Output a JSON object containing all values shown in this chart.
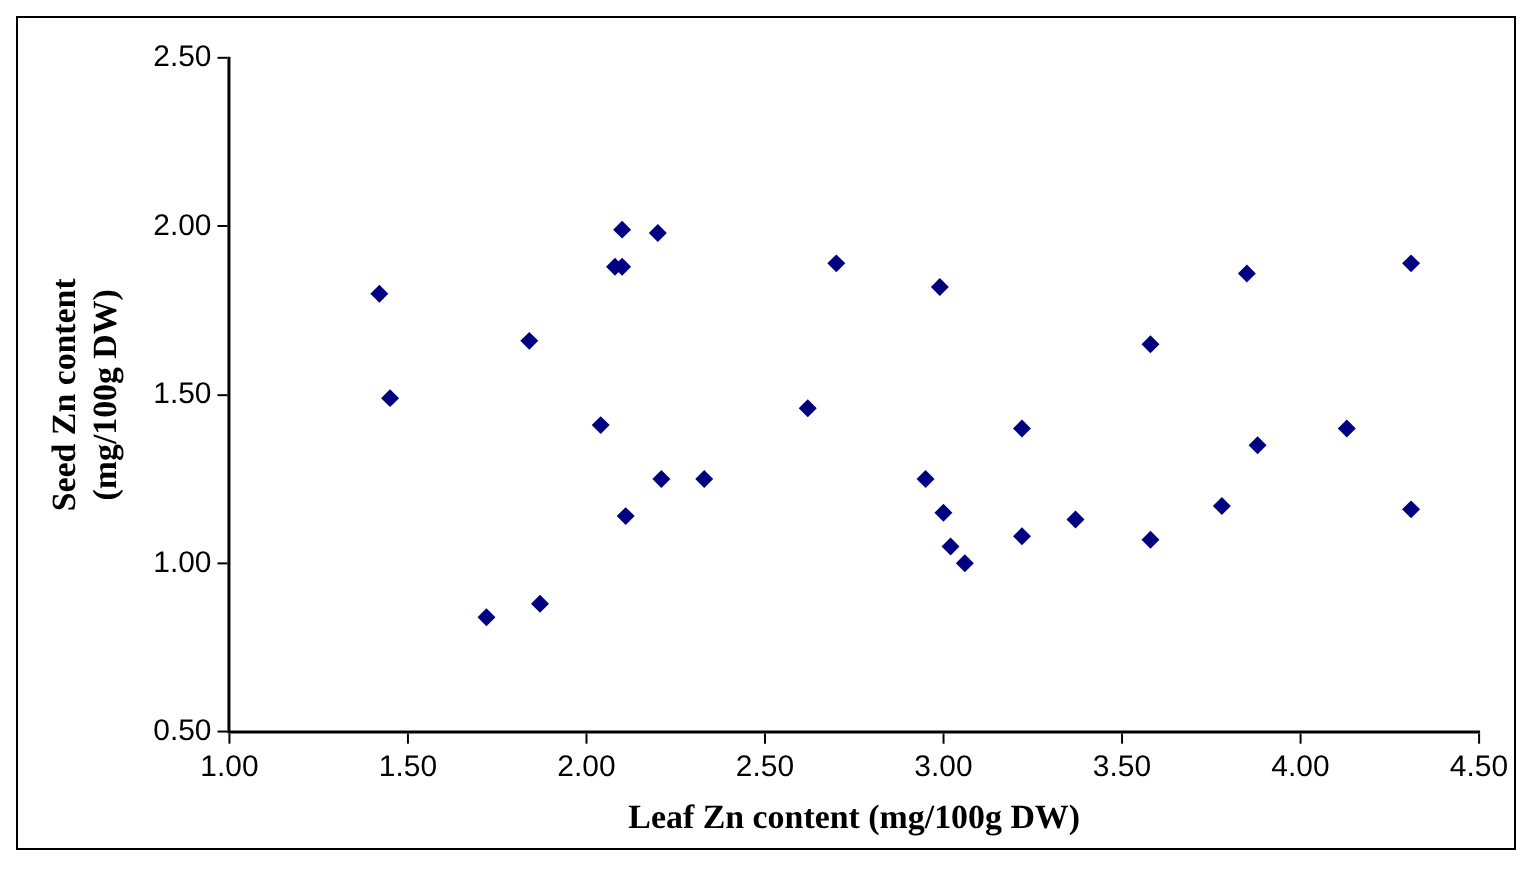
{
  "chart_data": {
    "type": "scatter",
    "xlabel": "Leaf Zn content (mg/100g DW)",
    "ylabel": "Seed Zn content (mg/100g DW)",
    "x": [
      1.42,
      1.45,
      1.72,
      1.87,
      1.84,
      2.04,
      2.1,
      2.08,
      2.1,
      2.2,
      2.11,
      2.21,
      2.33,
      2.62,
      2.7,
      2.99,
      2.95,
      3.0,
      3.02,
      3.06,
      3.22,
      3.22,
      3.37,
      3.58,
      3.58,
      3.78,
      3.85,
      3.88,
      4.13,
      4.31,
      4.31
    ],
    "values": [
      1.8,
      1.49,
      0.84,
      0.88,
      1.66,
      1.41,
      1.99,
      1.88,
      1.88,
      1.98,
      1.14,
      1.25,
      1.25,
      1.46,
      1.89,
      1.82,
      1.25,
      1.15,
      1.05,
      1.0,
      1.4,
      1.08,
      1.13,
      1.65,
      1.07,
      1.17,
      1.86,
      1.35,
      1.4,
      1.89,
      1.16
    ],
    "color": "#000080",
    "marker": "diamond",
    "xlim": [
      1.0,
      4.5
    ],
    "xticks": [
      {
        "value": 1.0,
        "label": "1.00"
      },
      {
        "value": 1.5,
        "label": "1.50"
      },
      {
        "value": 2.0,
        "label": "2.00"
      },
      {
        "value": 2.5,
        "label": "2.50"
      },
      {
        "value": 3.0,
        "label": "3.00"
      },
      {
        "value": 3.5,
        "label": "3.50"
      },
      {
        "value": 4.0,
        "label": "4.00"
      },
      {
        "value": 4.5,
        "label": "4.50"
      }
    ],
    "ylim": [
      0.5,
      2.5
    ],
    "yticks": [
      {
        "value": 0.5,
        "label": "0.50"
      },
      {
        "value": 1.0,
        "label": "1.00"
      },
      {
        "value": 1.5,
        "label": "1.50"
      },
      {
        "value": 2.0,
        "label": "2.00"
      },
      {
        "value": 2.5,
        "label": "2.50"
      }
    ],
    "grid": false,
    "legend": false
  }
}
